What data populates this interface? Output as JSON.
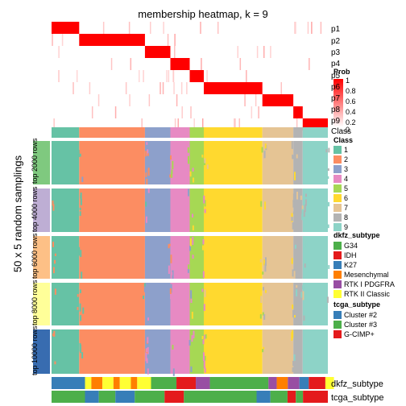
{
  "title": "membership heatmap, k = 9",
  "side_title": "50 x 5 random samplings",
  "colors": {
    "class": [
      "#66C2A5",
      "#FC8D62",
      "#8DA0CB",
      "#E78AC3",
      "#A6D854",
      "#FFD92F",
      "#E5C494",
      "#B3B3B3",
      "#8DD3C7"
    ],
    "dkfz": {
      "G34": "#4DAF4A",
      "IDH": "#E41A1C",
      "K27": "#377EB8",
      "Mesenchymal": "#FF7F00",
      "RTK I PDGFRA": "#984EA3",
      "RTK II Classic": "#FFFF33"
    },
    "tcga": {
      "Cluster #2": "#377EB8",
      "Cluster #3": "#4DAF4A",
      "G-CIMP+": "#E41A1C"
    },
    "prob_low": "#FFFFFF",
    "prob_high": "#FF0000",
    "groups": [
      "#7FC97F",
      "#BEAED4",
      "#FDC086",
      "#FFFF99",
      "#386CB0"
    ]
  },
  "chart_data": {
    "type": "heatmap",
    "title": "membership heatmap, k = 9",
    "ylabel": "50 x 5 random samplings",
    "membership_rows": [
      "p1",
      "p2",
      "p3",
      "p4",
      "p5",
      "p6",
      "p7",
      "p8",
      "p9"
    ],
    "prob_legend": {
      "title": "Prob",
      "ticks": [
        "1",
        "0.8",
        "0.6",
        "0.4",
        "0.2",
        "0"
      ]
    },
    "class_row_label": "Class",
    "sampling_groups": [
      "top 2000 rows",
      "top 4000 rows",
      "top 6000 rows",
      "top 8000 rows",
      "top 10000 rows"
    ],
    "class_legend": {
      "title": "Class",
      "items": [
        "1",
        "2",
        "3",
        "4",
        "5",
        "6",
        "7",
        "8",
        "9"
      ]
    },
    "dkfz_legend": {
      "title": "dkfz_subtype",
      "items": [
        "G34",
        "IDH",
        "K27",
        "Mesenchymal",
        "RTK I PDGFRA",
        "RTK II Classic"
      ]
    },
    "tcga_legend": {
      "title": "tcga_subtype",
      "items": [
        "Cluster #2",
        "Cluster #3",
        "G-CIMP+"
      ]
    },
    "bottom_rows": [
      "dkfz_subtype",
      "tcga_subtype"
    ],
    "class_blocks": [
      {
        "class": 1,
        "share": 0.1
      },
      {
        "class": 2,
        "share": 0.238
      },
      {
        "class": 3,
        "share": 0.092
      },
      {
        "class": 4,
        "share": 0.07
      },
      {
        "class": 5,
        "share": 0.051
      },
      {
        "class": 6,
        "share": 0.212
      },
      {
        "class": 7,
        "share": 0.112
      },
      {
        "class": 8,
        "share": 0.034
      },
      {
        "class": 9,
        "share": 0.091
      }
    ],
    "dkfz_segments": [
      {
        "subtype": "K27",
        "share": 0.121
      },
      {
        "subtype": "RTK II Classic",
        "share": 0.023
      },
      {
        "subtype": "Mesenchymal",
        "share": 0.04
      },
      {
        "subtype": "RTK II Classic",
        "share": 0.04
      },
      {
        "subtype": "Mesenchymal",
        "share": 0.023
      },
      {
        "subtype": "RTK II Classic",
        "share": 0.04
      },
      {
        "subtype": "Mesenchymal",
        "share": 0.023
      },
      {
        "subtype": "RTK II Classic",
        "share": 0.05
      },
      {
        "subtype": "G34",
        "share": 0.092
      },
      {
        "subtype": "IDH",
        "share": 0.07
      },
      {
        "subtype": "RTK I PDGFRA",
        "share": 0.051
      },
      {
        "subtype": "G34",
        "share": 0.212
      },
      {
        "subtype": "RTK I PDGFRA",
        "share": 0.03
      },
      {
        "subtype": "Mesenchymal",
        "share": 0.04
      },
      {
        "subtype": "RTK I PDGFRA",
        "share": 0.042
      },
      {
        "subtype": "K27",
        "share": 0.034
      },
      {
        "subtype": "IDH",
        "share": 0.06
      },
      {
        "subtype": "RTK II Classic",
        "share": 0.031
      }
    ],
    "tcga_segments": [
      {
        "subtype": "Cluster #3",
        "share": 0.121
      },
      {
        "subtype": "Cluster #2",
        "share": 0.05
      },
      {
        "subtype": "Cluster #3",
        "share": 0.06
      },
      {
        "subtype": "Cluster #2",
        "share": 0.07
      },
      {
        "subtype": "Cluster #3",
        "share": 0.108
      },
      {
        "subtype": "G-CIMP+",
        "share": 0.07
      },
      {
        "subtype": "Cluster #3",
        "share": 0.263
      },
      {
        "subtype": "Cluster #2",
        "share": 0.05
      },
      {
        "subtype": "Cluster #3",
        "share": 0.062
      },
      {
        "subtype": "G-CIMP+",
        "share": 0.03
      },
      {
        "subtype": "Cluster #3",
        "share": 0.026
      },
      {
        "subtype": "G-CIMP+",
        "share": 0.09
      }
    ]
  }
}
